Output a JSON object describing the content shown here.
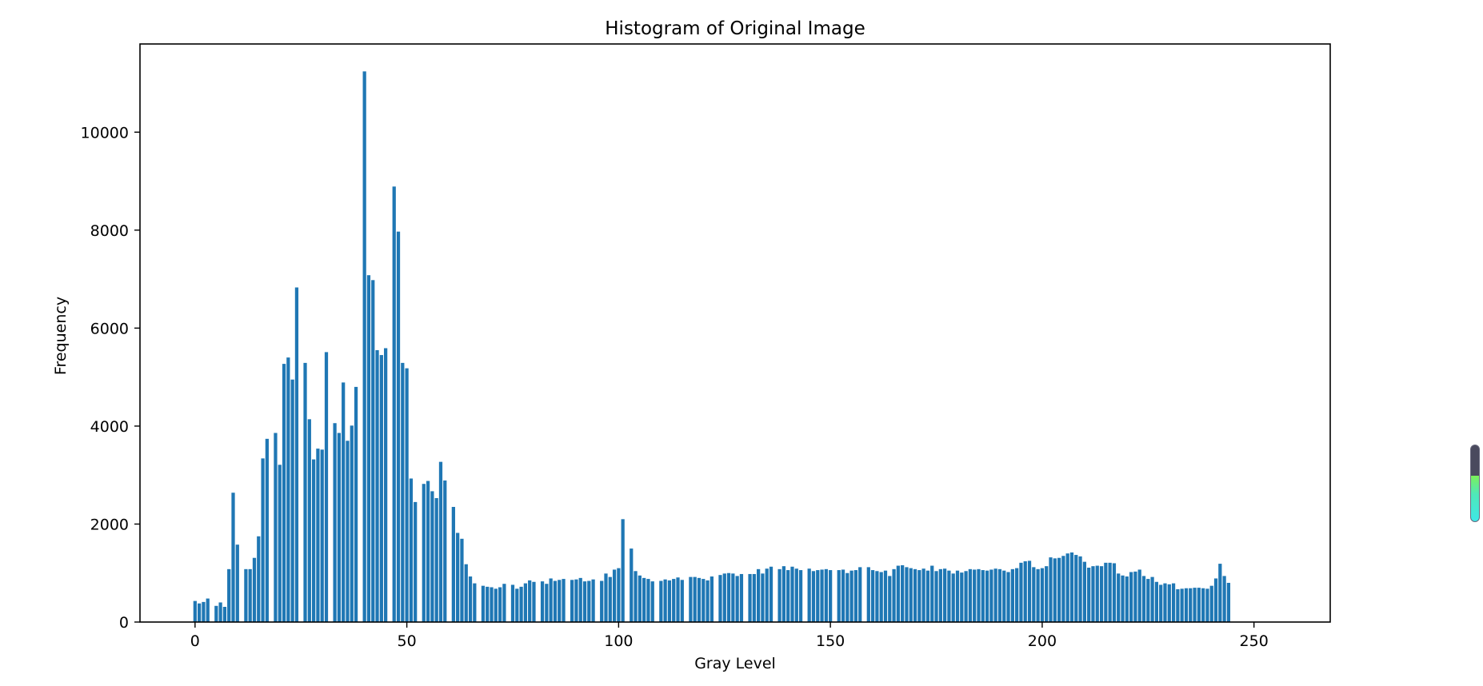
{
  "chart_data": {
    "type": "bar",
    "title": "Histogram of Original Image",
    "xlabel": "Gray Level",
    "ylabel": "Frequency",
    "xlim": [
      -13,
      268
    ],
    "ylim": [
      0,
      11800
    ],
    "xticks": [
      0,
      50,
      100,
      150,
      200,
      250
    ],
    "xtick_labels": [
      "0",
      "50",
      "100",
      "150",
      "200",
      "250"
    ],
    "yticks": [
      0,
      2000,
      4000,
      6000,
      8000,
      10000
    ],
    "ytick_labels": [
      "0",
      "2000",
      "4000",
      "6000",
      "8000",
      "10000"
    ],
    "bar_color": "#1f77b4",
    "x_start": 0,
    "values": [
      430,
      380,
      410,
      480,
      0,
      330,
      400,
      310,
      1080,
      2640,
      1580,
      0,
      1080,
      1080,
      1310,
      1750,
      3340,
      3740,
      0,
      3860,
      3210,
      5270,
      5400,
      4950,
      6830,
      0,
      5290,
      4140,
      3320,
      3540,
      3520,
      5510,
      0,
      4060,
      3860,
      4890,
      3700,
      4010,
      4800,
      0,
      11240,
      7080,
      6980,
      5550,
      5450,
      5590,
      0,
      8890,
      7970,
      5290,
      5180,
      2930,
      2450,
      0,
      2820,
      2880,
      2670,
      2530,
      3270,
      2890,
      0,
      2350,
      1820,
      1700,
      1180,
      930,
      790,
      0,
      740,
      720,
      710,
      680,
      710,
      780,
      0,
      760,
      680,
      720,
      790,
      850,
      820,
      0,
      830,
      780,
      890,
      840,
      860,
      880,
      0,
      860,
      870,
      900,
      830,
      840,
      870,
      0,
      840,
      990,
      920,
      1070,
      1100,
      2100,
      0,
      1500,
      1040,
      950,
      900,
      880,
      830,
      0,
      840,
      870,
      850,
      880,
      910,
      860,
      0,
      920,
      920,
      900,
      880,
      850,
      930,
      0,
      960,
      990,
      1000,
      990,
      940,
      980,
      0,
      980,
      980,
      1080,
      990,
      1090,
      1130,
      0,
      1080,
      1140,
      1060,
      1130,
      1090,
      1060,
      0,
      1090,
      1040,
      1060,
      1070,
      1080,
      1060,
      0,
      1060,
      1070,
      1000,
      1050,
      1060,
      1120,
      0,
      1120,
      1060,
      1040,
      1020,
      1050,
      940,
      1080,
      1150,
      1160,
      1120,
      1100,
      1080,
      1060,
      1090,
      1050,
      1150,
      1040,
      1080,
      1090,
      1050,
      990,
      1050,
      1010,
      1040,
      1080,
      1070,
      1080,
      1060,
      1050,
      1070,
      1090,
      1080,
      1050,
      1020,
      1080,
      1100,
      1210,
      1240,
      1250,
      1120,
      1080,
      1100,
      1140,
      1320,
      1300,
      1310,
      1350,
      1400,
      1420,
      1370,
      1340,
      1230,
      1110,
      1140,
      1150,
      1140,
      1210,
      1210,
      1200,
      990,
      950,
      930,
      1020,
      1030,
      1070,
      940,
      880,
      920,
      820,
      760,
      790,
      770,
      790,
      670,
      680,
      690,
      690,
      700,
      700,
      690,
      680,
      740,
      890,
      1190,
      940,
      800
    ]
  }
}
